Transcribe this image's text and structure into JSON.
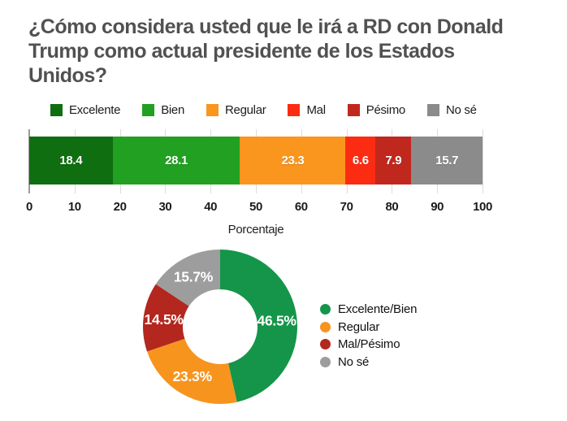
{
  "title": "¿Cómo considera usted que le irá a RD con Donald Trump como actual presidente de los Estados Unidos?",
  "colors": {
    "excelente": "#0F6E0F",
    "bien": "#22A022",
    "regular": "#FA951E",
    "mal": "#FB2C12",
    "pesimo": "#C0281E",
    "no_se": "#8B8B8B",
    "donut_green": "#159549",
    "donut_orange": "#F7941E",
    "donut_dark_red": "#B3271E",
    "donut_gray": "#9D9D9D",
    "title_text": "#515153"
  },
  "chart_data": [
    {
      "type": "bar",
      "variant": "horizontal-stacked",
      "title": "",
      "xlabel": "Porcentaje",
      "xlim": [
        0,
        100
      ],
      "xticks": [
        0,
        10,
        20,
        30,
        40,
        50,
        60,
        70,
        80,
        90,
        100
      ],
      "grid": true,
      "legend_position": "top",
      "segments": [
        {
          "label": "Excelente",
          "value": 18.4,
          "display": "18.4",
          "color": "#0F6E0F"
        },
        {
          "label": "Bien",
          "value": 28.1,
          "display": "28.1",
          "color": "#22A022"
        },
        {
          "label": "Regular",
          "value": 23.3,
          "display": "23.3",
          "color": "#FA951E"
        },
        {
          "label": "Mal",
          "value": 6.6,
          "display": "6.6",
          "color": "#FB2C12"
        },
        {
          "label": "Pésimo",
          "value": 7.9,
          "display": "7.9",
          "color": "#C0281E"
        },
        {
          "label": "No sé",
          "value": 15.7,
          "display": "15.7",
          "color": "#8B8B8B"
        }
      ]
    },
    {
      "type": "pie",
      "variant": "donut",
      "start_angle_deg": 0,
      "direction": "clockwise",
      "legend_position": "right",
      "slices": [
        {
          "label": "Excelente/Bien",
          "value": 46.5,
          "display": "46.5%",
          "color": "#159549"
        },
        {
          "label": "Regular",
          "value": 23.3,
          "display": "23.3%",
          "color": "#F7941E"
        },
        {
          "label": "Mal/Pésimo",
          "value": 14.5,
          "display": "14.5%",
          "color": "#B3271E"
        },
        {
          "label": "No sé",
          "value": 15.7,
          "display": "15.7%",
          "color": "#9D9D9D"
        }
      ]
    }
  ]
}
